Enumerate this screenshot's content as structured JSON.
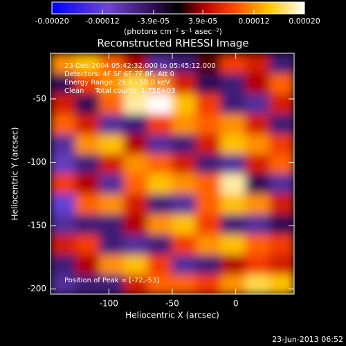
{
  "chart_data": {
    "type": "heatmap",
    "title": "Reconstructed RHESSI Image",
    "xlabel": "Heliocentric X (arcsec)",
    "ylabel": "Heliocentric Y (arcsec)",
    "xlim": [
      -146,
      46
    ],
    "ylim": [
      -204,
      -14
    ],
    "xticks": [
      -100,
      -50,
      0
    ],
    "yticks": [
      -200,
      -150,
      -100,
      -50
    ],
    "x": [
      -136,
      -117,
      -98,
      -79,
      -60,
      -41,
      -22,
      -2,
      17,
      36
    ],
    "y": [
      -22,
      -38,
      -54,
      -70,
      -86,
      -101,
      -117,
      -133,
      -149,
      -165,
      -181,
      -196
    ],
    "z": [
      [
        0.00012,
        0.00014,
        0.0001,
        4e-05,
        -8e-05,
        -6e-05,
        2e-05,
        8e-05,
        6e-05,
        -6e-05
      ],
      [
        -4e-05,
        8e-05,
        0.00012,
        0.00016,
        0.00012,
        6e-05,
        -4e-05,
        -6e-05,
        4e-05,
        0.0001
      ],
      [
        6e-05,
        -4e-05,
        0.0001,
        0.00018,
        0.0002,
        0.00014,
        8e-05,
        -6e-05,
        -8e-05,
        6e-05
      ],
      [
        0.0001,
        6e-05,
        -8e-05,
        -6e-05,
        8e-05,
        0.00012,
        0.0001,
        0.00012,
        6e-05,
        -6e-05
      ],
      [
        -8e-05,
        0.00012,
        0.00014,
        4e-05,
        -8e-05,
        -6e-05,
        6e-05,
        0.00014,
        0.00012,
        8e-05
      ],
      [
        -0.0001,
        -6e-05,
        6e-05,
        0.00012,
        0.0001,
        6e-05,
        -6e-05,
        -8e-05,
        6e-05,
        0.0001
      ],
      [
        8e-05,
        4e-05,
        -8e-05,
        0.0001,
        0.00014,
        0.00012,
        0.0001,
        0.00018,
        -4e-05,
        -8e-05
      ],
      [
        -0.00012,
        0.0001,
        0.00012,
        6e-05,
        -6e-05,
        -8e-05,
        0.0001,
        0.00014,
        0.00012,
        6e-05
      ],
      [
        -8e-05,
        -6e-05,
        -6e-05,
        4e-05,
        0.00012,
        0.00014,
        8e-05,
        -6e-05,
        -8e-05,
        -4e-05
      ],
      [
        6e-05,
        8e-05,
        -6e-05,
        -8e-05,
        -6e-05,
        8e-05,
        0.00012,
        0.00014,
        0.0001,
        8e-05
      ],
      [
        -6e-05,
        4e-05,
        0.00012,
        0.00014,
        8e-05,
        -8e-05,
        -6e-05,
        4e-05,
        8e-05,
        6e-05
      ],
      [
        -8e-05,
        -6e-05,
        -6e-05,
        6e-05,
        0.0001,
        0.0001,
        8e-05,
        0.00012,
        0.00016,
        0.00014
      ]
    ],
    "colorbar": {
      "label": "(photons cm⁻² s⁻¹ asec⁻²)",
      "clim": [
        -0.0002,
        0.0002
      ],
      "ticks": [
        {
          "value": -0.0002,
          "label": "-0.00020"
        },
        -0.00012,
        {
          "value": -3.9e-05,
          "label": "-3.9e-05"
        },
        {
          "value": 3.9e-05,
          "label": "3.9e-05"
        },
        0.00012,
        {
          "value": 0.0002,
          "label": "0.00020"
        }
      ]
    },
    "annotations": [
      "23-Dec-2004 05:42:32.000 to 05:45:12.000",
      "Detectors: 4F 5F 6F 7F 8F, Att 0",
      "Energy Range: 25.0 - 50.0 keV",
      "Clean     Total counts: 1.75E+03"
    ],
    "peak_label": "Position of Peak = [-72,-53]"
  },
  "timestamp": "23-Jun-2013 06:52"
}
